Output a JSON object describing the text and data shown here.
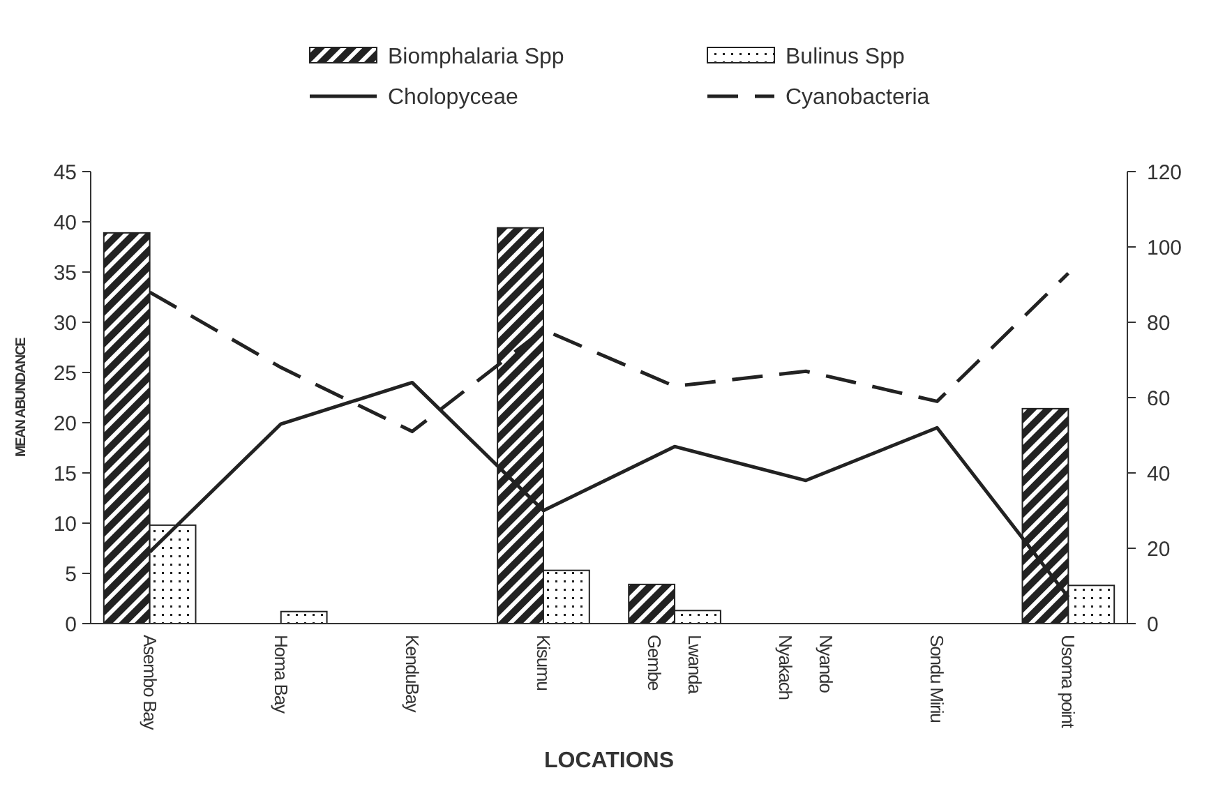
{
  "chart_data": {
    "type": "bar",
    "xlabel": "LOCATIONS",
    "ylabel": "MEAN ABUNDANCE",
    "categories": [
      "Asembo Bay",
      "Homa Bay",
      "KenduBay",
      "Kisumu",
      "Gembe\nLwanda",
      "Nyakach\nNyando",
      "Sondu Miriu",
      "Usoma point"
    ],
    "ylim": [
      0,
      45
    ],
    "yticks": [
      0,
      5,
      10,
      15,
      20,
      25,
      30,
      35,
      40,
      45
    ],
    "y2lim": [
      0,
      120
    ],
    "y2ticks": [
      0,
      20,
      40,
      60,
      80,
      100,
      120
    ],
    "legend": "top",
    "grid": false,
    "series": [
      {
        "name": "Biomphalaria Spp",
        "color": "#222222",
        "values": [
          38.9,
          0,
          0,
          39.4,
          3.9,
          0,
          0,
          21.4
        ]
      },
      {
        "name": "Bulinus Spp",
        "color": "#222222",
        "values": [
          9.8,
          1.2,
          0,
          5.3,
          1.3,
          0,
          0,
          3.8
        ]
      },
      {
        "name": "Cholopyceae",
        "type": "line",
        "axis": "y2",
        "line_style": "solid",
        "color": "#222222",
        "values": [
          19,
          53,
          64,
          30,
          47,
          38,
          52,
          7
        ]
      },
      {
        "name": "Cyanobacteria",
        "type": "line",
        "axis": "y2",
        "line_style": "dashed",
        "color": "#222222",
        "values": [
          88,
          68,
          51,
          78,
          63,
          67,
          59,
          93
        ]
      }
    ]
  }
}
